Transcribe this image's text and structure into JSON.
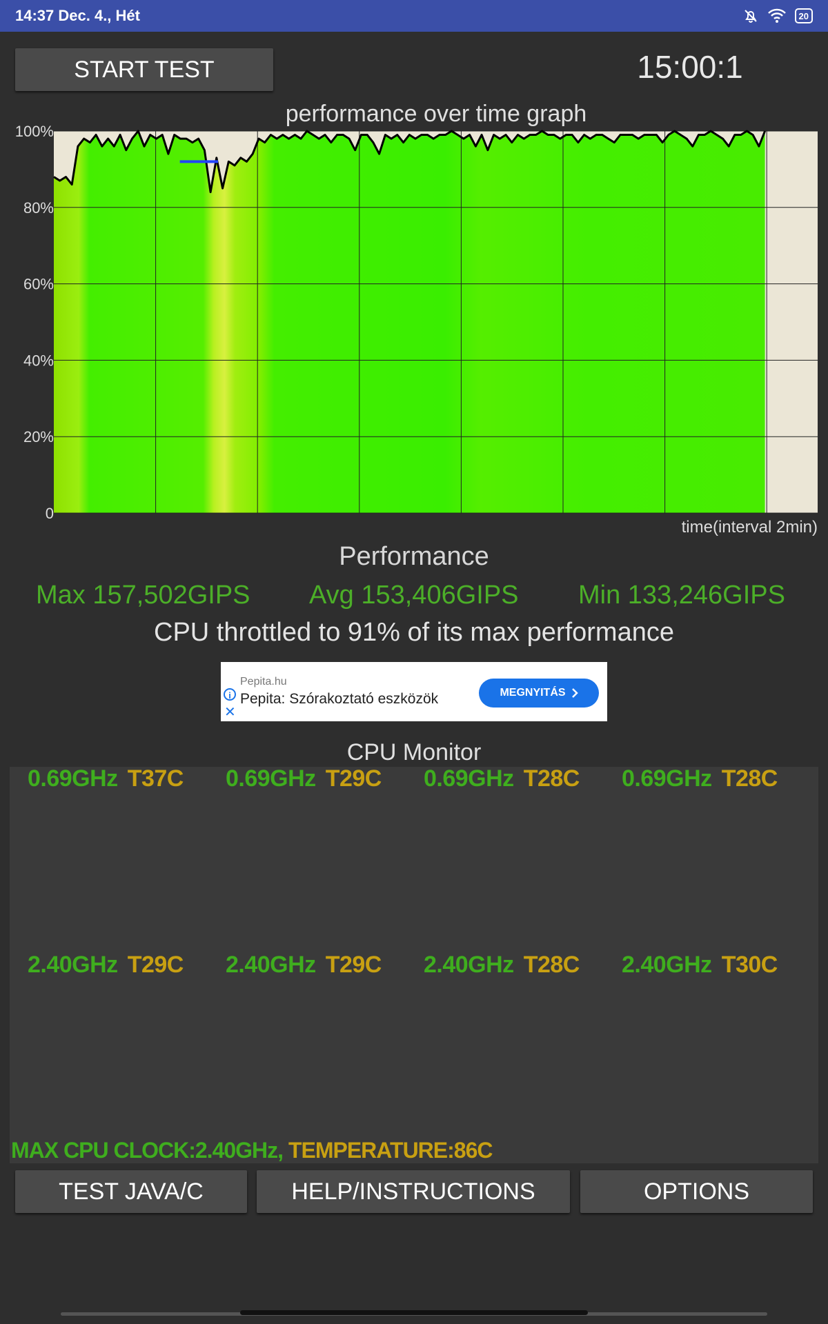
{
  "status_bar": {
    "time_date": "14:37 Dec. 4., Hét",
    "battery": "20",
    "icons": [
      "bell-off-icon",
      "wifi-icon",
      "battery-icon"
    ]
  },
  "toolbar": {
    "start_label": "START TEST",
    "timer": "15:00:1"
  },
  "chart_title": "performance over time graph",
  "chart_data": {
    "type": "line",
    "title": "performance over time graph",
    "xlabel": "time(interval 2min)",
    "ylabel": "",
    "y_ticks": [
      "100%",
      "80%",
      "60%",
      "40%",
      "20%",
      "0"
    ],
    "ylim": [
      0,
      100
    ],
    "xlim_minutes": [
      0,
      15
    ],
    "grid": true,
    "series": [
      {
        "color": "#000000",
        "values": [
          88,
          87,
          88,
          86,
          96,
          98,
          97,
          99,
          96,
          98,
          96,
          99,
          95,
          98,
          100,
          96,
          99,
          98,
          99,
          94,
          99,
          98,
          98,
          97,
          98,
          95,
          84,
          93,
          85,
          92,
          91,
          93,
          92,
          94,
          98,
          97,
          99,
          98,
          99,
          98,
          99,
          98,
          100,
          99,
          98,
          99,
          97,
          99,
          99,
          98,
          95,
          99,
          99,
          97,
          94,
          99,
          98,
          99,
          97,
          99,
          98,
          99,
          99,
          98,
          99,
          99,
          100,
          99,
          98,
          99,
          96,
          99,
          95,
          99,
          98,
          99,
          97,
          99,
          98,
          99,
          99,
          100,
          99,
          99,
          98,
          99,
          99,
          97,
          99,
          98,
          99,
          99,
          98,
          97,
          99,
          99,
          99,
          98,
          99,
          99,
          99,
          97,
          99,
          100,
          99,
          98,
          96,
          99,
          99,
          100,
          99,
          98,
          96,
          99,
          99,
          100,
          99,
          96,
          100
        ]
      },
      {
        "color": "#2244ff",
        "segment_values": [
          92,
          92
        ]
      }
    ]
  },
  "performance": {
    "heading": "Performance",
    "max": "Max 157,502GIPS",
    "avg": "Avg 153,406GIPS",
    "min": "Min 133,246GIPS",
    "throttle": "CPU throttled to 91% of its max performance"
  },
  "ad": {
    "domain": "Pepita.hu",
    "text": "Pepita: Szórakoztató eszközök",
    "button": "MEGNYITÁS"
  },
  "cpu_monitor": {
    "title": "CPU Monitor",
    "cores": [
      {
        "freq": "0.69GHz",
        "temp": "T37C",
        "freq_level": 0.29,
        "temp_level": 0.43
      },
      {
        "freq": "0.69GHz",
        "temp": "T29C",
        "freq_level": 0.29,
        "temp_level": 0.34
      },
      {
        "freq": "0.69GHz",
        "temp": "T28C",
        "freq_level": 0.29,
        "temp_level": 0.33
      },
      {
        "freq": "0.69GHz",
        "temp": "T28C",
        "freq_level": 0.29,
        "temp_level": 0.33
      },
      {
        "freq": "2.40GHz",
        "temp": "T29C",
        "freq_level": 1.0,
        "temp_level": 0.33
      },
      {
        "freq": "2.40GHz",
        "temp": "T29C",
        "freq_level": 1.0,
        "temp_level": 0.33
      },
      {
        "freq": "2.40GHz",
        "temp": "T28C",
        "freq_level": 1.0,
        "temp_level": 0.32
      },
      {
        "freq": "2.40GHz",
        "temp": "T30C",
        "freq_level": 1.0,
        "temp_level": 0.36
      }
    ],
    "max_clock": "MAX CPU CLOCK:2.40GHz,",
    "temperature": " TEMPERATURE:86C"
  },
  "bottom_buttons": {
    "java_label": "TEST JAVA/C",
    "help_label": "HELP/INSTRUCTIONS",
    "options_label": "OPTIONS"
  },
  "colors": {
    "status_bar": "#3b4fa8",
    "freq_green": "#3fae1e",
    "temp_amber": "#c8a012",
    "chart_fill": "#44ee00",
    "stat_green": "#4caf28"
  }
}
